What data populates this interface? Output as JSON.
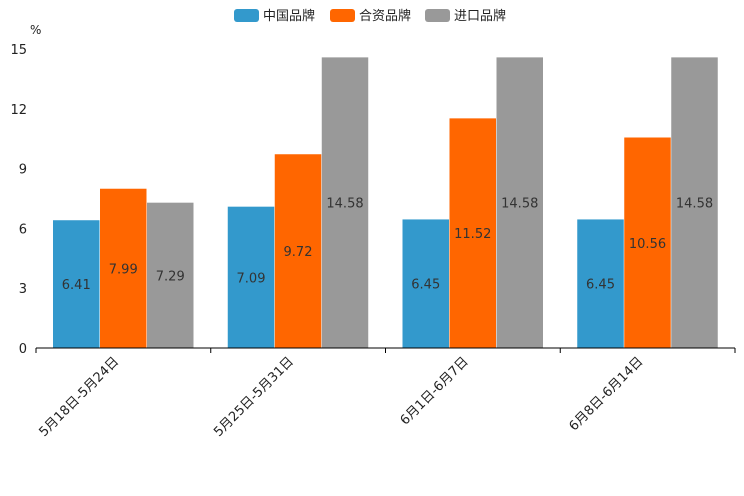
{
  "chart_data": {
    "type": "bar",
    "unit": "%",
    "categories": [
      "5月18日-5月24日",
      "5月25日-5月31日",
      "6月1日-6月7日",
      "6月8日-6月14日"
    ],
    "series": [
      {
        "name": "中国品牌",
        "color": "#3399cc",
        "values": [
          6.41,
          7.09,
          6.45,
          6.45
        ]
      },
      {
        "name": "合资品牌",
        "color": "#ff6600",
        "values": [
          7.99,
          9.72,
          11.52,
          10.56
        ]
      },
      {
        "name": "进口品牌",
        "color": "#999999",
        "values": [
          7.29,
          14.58,
          14.58,
          14.58
        ]
      }
    ],
    "ylim": [
      0,
      15
    ],
    "yticks": [
      0,
      3,
      6,
      9,
      12,
      15
    ],
    "legend_position": "top-center",
    "grid": false
  }
}
